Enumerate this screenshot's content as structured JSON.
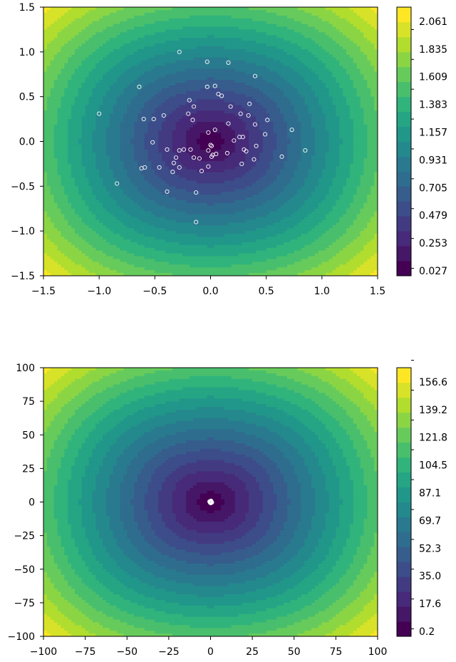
{
  "chart_data": [
    {
      "type": "contourf",
      "title": "",
      "xlabel": "",
      "ylabel": "",
      "xlim": [
        -1.5,
        1.5
      ],
      "ylim": [
        -1.5,
        1.5
      ],
      "xticks": [
        -1.5,
        -1.0,
        -0.5,
        0.0,
        0.5,
        1.0,
        1.5
      ],
      "yticks": [
        -1.5,
        -1.0,
        -0.5,
        0.0,
        0.5,
        1.0,
        1.5
      ],
      "xtick_labels": [
        "−1.5",
        "−1.0",
        "−0.5",
        "0.0",
        "0.5",
        "1.0",
        "1.5"
      ],
      "ytick_labels": [
        "−1.5",
        "−1.0",
        "−0.5",
        "0.0",
        "0.5",
        "1.0",
        "1.5"
      ],
      "colorbar_ticks": [
        0.027,
        0.253,
        0.479,
        0.705,
        0.931,
        1.157,
        1.383,
        1.609,
        1.835,
        2.061
      ],
      "colorbar_labels": [
        "0.027",
        "0.253",
        "0.479",
        "0.705",
        "0.931",
        "1.157",
        "1.383",
        "1.609",
        "1.835",
        "2.061"
      ],
      "levels_min": 0.027,
      "levels_step": 0.113,
      "levels_count": 19,
      "colormap": "viridis",
      "marker_color": "#ffffff",
      "points": [
        [
          -0.28,
          1.0
        ],
        [
          -0.03,
          0.89
        ],
        [
          0.16,
          0.88
        ],
        [
          0.4,
          0.73
        ],
        [
          -0.64,
          0.61
        ],
        [
          -0.03,
          0.61
        ],
        [
          0.04,
          0.62
        ],
        [
          0.07,
          0.53
        ],
        [
          0.1,
          0.51
        ],
        [
          -0.19,
          0.46
        ],
        [
          -1.0,
          0.31
        ],
        [
          -0.15,
          0.39
        ],
        [
          0.18,
          0.39
        ],
        [
          0.35,
          0.42
        ],
        [
          -0.2,
          0.31
        ],
        [
          0.27,
          0.31
        ],
        [
          -0.6,
          0.25
        ],
        [
          -0.51,
          0.25
        ],
        [
          -0.42,
          0.29
        ],
        [
          -0.16,
          0.24
        ],
        [
          0.34,
          0.29
        ],
        [
          0.51,
          0.24
        ],
        [
          0.16,
          0.2
        ],
        [
          0.4,
          0.19
        ],
        [
          0.73,
          0.13
        ],
        [
          -0.02,
          0.1
        ],
        [
          0.04,
          0.13
        ],
        [
          0.26,
          0.05
        ],
        [
          0.29,
          0.05
        ],
        [
          0.49,
          0.08
        ],
        [
          0.21,
          0.01
        ],
        [
          -0.52,
          -0.01
        ],
        [
          0.0,
          -0.04
        ],
        [
          0.01,
          -0.05
        ],
        [
          0.3,
          -0.09
        ],
        [
          0.41,
          -0.05
        ],
        [
          -0.39,
          -0.09
        ],
        [
          -0.28,
          -0.1
        ],
        [
          -0.24,
          -0.09
        ],
        [
          -0.18,
          -0.09
        ],
        [
          -0.02,
          -0.1
        ],
        [
          0.05,
          -0.14
        ],
        [
          0.02,
          -0.15
        ],
        [
          0.15,
          -0.13
        ],
        [
          0.32,
          -0.11
        ],
        [
          0.85,
          -0.1
        ],
        [
          -0.15,
          -0.18
        ],
        [
          -0.1,
          -0.19
        ],
        [
          0.01,
          -0.17
        ],
        [
          0.39,
          -0.2
        ],
        [
          0.64,
          -0.17
        ],
        [
          -0.31,
          -0.18
        ],
        [
          -0.33,
          -0.24
        ],
        [
          -0.46,
          -0.29
        ],
        [
          -0.28,
          -0.29
        ],
        [
          -0.59,
          -0.29
        ],
        [
          -0.62,
          -0.3
        ],
        [
          -0.34,
          -0.34
        ],
        [
          -0.02,
          -0.28
        ],
        [
          -0.08,
          -0.33
        ],
        [
          0.28,
          -0.25
        ],
        [
          -0.39,
          -0.56
        ],
        [
          -0.13,
          -0.57
        ],
        [
          -0.84,
          -0.47
        ],
        [
          -0.13,
          -0.9
        ]
      ]
    },
    {
      "type": "contourf",
      "title": "",
      "xlabel": "",
      "ylabel": "",
      "xlim": [
        -100,
        100
      ],
      "ylim": [
        -100,
        100
      ],
      "xticks": [
        -100,
        -75,
        -50,
        -25,
        0,
        25,
        50,
        75,
        100
      ],
      "yticks": [
        -100,
        -75,
        -50,
        -25,
        0,
        25,
        50,
        75,
        100
      ],
      "xtick_labels": [
        "−100",
        "−75",
        "−50",
        "−25",
        "0",
        "25",
        "50",
        "75",
        "100"
      ],
      "ytick_labels": [
        "−100",
        "−75",
        "−50",
        "−25",
        "0",
        "25",
        "50",
        "75",
        "100"
      ],
      "colorbar_ticks": [
        0.2,
        17.6,
        35.0,
        52.3,
        69.7,
        87.1,
        104.5,
        121.8,
        139.2,
        156.6
      ],
      "colorbar_labels": [
        "0.2",
        "17.6",
        "35.0",
        "52.3",
        "69.7",
        "87.1",
        "104.5",
        "121.8",
        "139.2",
        "156.6"
      ],
      "levels_min": 0.2,
      "levels_step": 8.69,
      "levels_count": 19,
      "colormap": "viridis",
      "marker_color": "#ffffff",
      "points": [
        [
          0.0,
          0.6
        ],
        [
          0.5,
          0.2
        ],
        [
          -0.4,
          0.0
        ],
        [
          0.8,
          -0.3
        ],
        [
          -0.2,
          -0.5
        ],
        [
          0.3,
          0.9
        ],
        [
          0.1,
          -0.8
        ],
        [
          -0.6,
          0.4
        ]
      ]
    }
  ]
}
